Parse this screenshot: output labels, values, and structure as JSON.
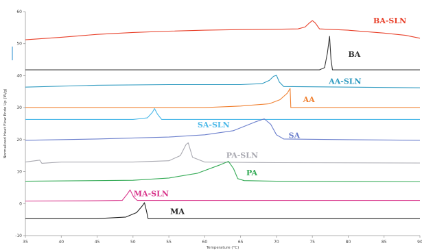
{
  "chart_data": {
    "type": "line",
    "title": "",
    "xlabel": "Temperature (°C)",
    "ylabel": "Normalized Heat Flow Endo Up (W/g)",
    "xlim": [
      35,
      90
    ],
    "ylim": [
      -10,
      60
    ],
    "x_ticks": [
      35,
      40,
      45,
      50,
      55,
      60,
      65,
      70,
      75,
      80,
      85,
      90
    ],
    "y_ticks": [
      -10,
      0,
      10,
      20,
      30,
      40,
      50,
      60
    ],
    "grid": false,
    "legend": "labels next to curves",
    "series": [
      {
        "name": "BA-SLN",
        "color": "#e8402a",
        "label_at": [
          83.5,
          57.2
        ],
        "points": [
          [
            35,
            51.2
          ],
          [
            40,
            52.0
          ],
          [
            45,
            52.9
          ],
          [
            50,
            53.5
          ],
          [
            55,
            53.9
          ],
          [
            60,
            54.2
          ],
          [
            65,
            54.4
          ],
          [
            70,
            54.5
          ],
          [
            73,
            54.6
          ],
          [
            74,
            55.2
          ],
          [
            74.6,
            56.5
          ],
          [
            75,
            57.2
          ],
          [
            75.4,
            56.5
          ],
          [
            76,
            54.6
          ],
          [
            80,
            54.2
          ],
          [
            85,
            53.3
          ],
          [
            88,
            52.6
          ],
          [
            90,
            51.7
          ]
        ]
      },
      {
        "name": "BA",
        "color": "#333333",
        "label_at": [
          80,
          46.7
        ],
        "points": [
          [
            35,
            41.8
          ],
          [
            70,
            41.8
          ],
          [
            76,
            41.8
          ],
          [
            76.7,
            42.5
          ],
          [
            77.1,
            47
          ],
          [
            77.4,
            52.3
          ],
          [
            77.6,
            45
          ],
          [
            77.8,
            41.8
          ],
          [
            90,
            41.8
          ]
        ]
      },
      {
        "name": "AA-SLN",
        "color": "#2e9ac0",
        "label_at": [
          77.3,
          38.3
        ],
        "points": [
          [
            35,
            36.4
          ],
          [
            45,
            37.0
          ],
          [
            55,
            37.2
          ],
          [
            65,
            37.2
          ],
          [
            68,
            37.5
          ],
          [
            69,
            38.5
          ],
          [
            69.6,
            39.8
          ],
          [
            70,
            40.1
          ],
          [
            70.4,
            38
          ],
          [
            71,
            36.6
          ],
          [
            80,
            36.4
          ],
          [
            90,
            36.2
          ]
        ]
      },
      {
        "name": "AA",
        "color": "#f08030",
        "label_at": [
          73.7,
          32.6
        ],
        "points": [
          [
            35,
            30.0
          ],
          [
            60,
            30.0
          ],
          [
            65,
            30.5
          ],
          [
            69,
            31.2
          ],
          [
            70.5,
            32.5
          ],
          [
            71.5,
            34.5
          ],
          [
            71.9,
            36.0
          ],
          [
            72.0,
            30.0
          ],
          [
            90,
            30.0
          ]
        ]
      },
      {
        "name": "SA-SLN",
        "color": "#4ab8e8",
        "label_at": [
          59,
          24.7
        ],
        "points": [
          [
            35,
            26.3
          ],
          [
            50,
            26.3
          ],
          [
            52,
            26.8
          ],
          [
            52.7,
            28.5
          ],
          [
            53,
            29.7
          ],
          [
            53.4,
            28
          ],
          [
            54,
            26.3
          ],
          [
            70,
            26.3
          ],
          [
            90,
            26.3
          ]
        ]
      },
      {
        "name": "SA",
        "color": "#6a7ecc",
        "label_at": [
          71.7,
          21.4
        ],
        "points": [
          [
            35,
            19.8
          ],
          [
            45,
            20.2
          ],
          [
            55,
            20.8
          ],
          [
            60,
            21.5
          ],
          [
            64,
            22.8
          ],
          [
            67,
            25.5
          ],
          [
            68.3,
            26.5
          ],
          [
            69.2,
            24.8
          ],
          [
            70,
            21.5
          ],
          [
            71,
            20.2
          ],
          [
            80,
            20.0
          ],
          [
            90,
            19.8
          ]
        ]
      },
      {
        "name": "PA-SLN",
        "color": "#a8a8b0",
        "label_at": [
          63,
          15.2
        ],
        "points": [
          [
            35,
            13.0
          ],
          [
            37,
            13.6
          ],
          [
            37.3,
            12.6
          ],
          [
            40,
            13.0
          ],
          [
            50,
            13.0
          ],
          [
            55,
            13.4
          ],
          [
            56.6,
            15.0
          ],
          [
            57.4,
            18.5
          ],
          [
            57.7,
            19.0
          ],
          [
            58.3,
            14.5
          ],
          [
            60,
            13.0
          ],
          [
            70,
            12.8
          ],
          [
            90,
            12.7
          ]
        ]
      },
      {
        "name": "PA",
        "color": "#33aa55",
        "label_at": [
          65.8,
          9.7
        ],
        "points": [
          [
            35,
            7.0
          ],
          [
            50,
            7.3
          ],
          [
            55,
            8.0
          ],
          [
            59,
            9.5
          ],
          [
            62,
            12.0
          ],
          [
            63.3,
            13.2
          ],
          [
            64,
            11
          ],
          [
            64.6,
            7.8
          ],
          [
            65.5,
            7.2
          ],
          [
            70,
            7.0
          ],
          [
            90,
            6.8
          ]
        ]
      },
      {
        "name": "MA-SLN",
        "color": "#d8338a",
        "label_at": [
          50.1,
          3.2
        ],
        "points": [
          [
            35,
            0.8
          ],
          [
            45,
            0.9
          ],
          [
            48.5,
            1.0
          ],
          [
            49.2,
            3.0
          ],
          [
            49.6,
            4.3
          ],
          [
            50.1,
            2.0
          ],
          [
            50.6,
            1.0
          ],
          [
            60,
            1.0
          ],
          [
            90,
            1.0
          ]
        ]
      },
      {
        "name": "MA",
        "color": "#222222",
        "label_at": [
          55.2,
          -2.4
        ],
        "points": [
          [
            35,
            -4.7
          ],
          [
            45,
            -4.7
          ],
          [
            49,
            -4.2
          ],
          [
            50.5,
            -2.8
          ],
          [
            51.3,
            -0.7
          ],
          [
            51.6,
            0.3
          ],
          [
            51.9,
            -2.5
          ],
          [
            52.1,
            -4.7
          ],
          [
            60,
            -4.7
          ],
          [
            90,
            -4.7
          ]
        ]
      }
    ]
  }
}
